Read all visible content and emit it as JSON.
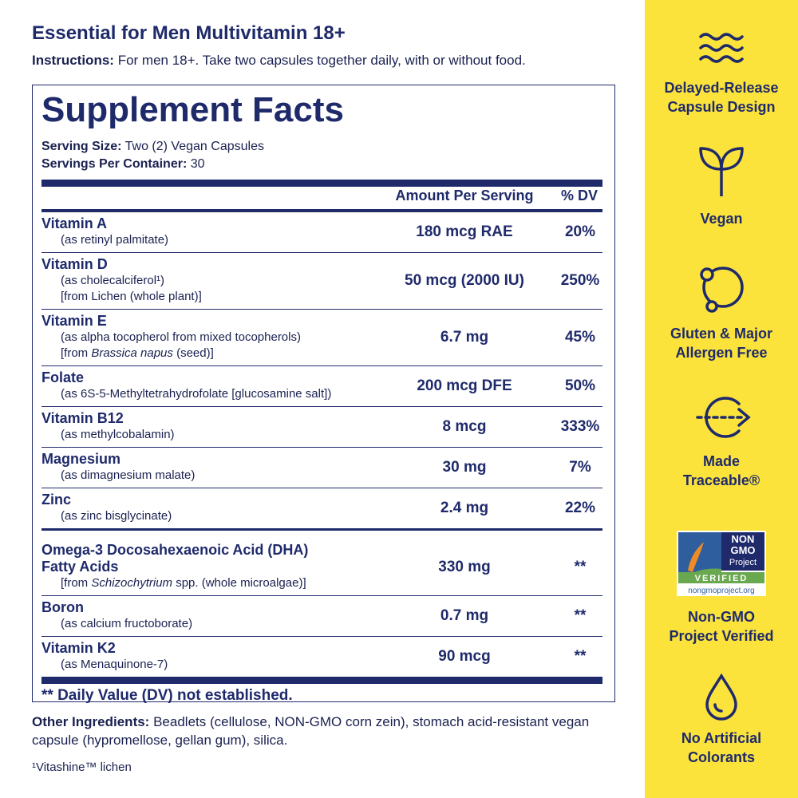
{
  "header": {
    "title": "Essential for Men Multivitamin 18+",
    "instructions": {
      "label": "Instructions:",
      "text": "For men 18+. Take two capsules together daily, with or without food."
    }
  },
  "facts": {
    "title": "Supplement Facts",
    "serving_size": {
      "label": "Serving Size:",
      "text": "Two (2) Vegan Capsules"
    },
    "servings_per_container": {
      "label": "Servings Per Container:",
      "text": "30"
    },
    "columns": {
      "amount": "Amount Per Serving",
      "dv": "% DV"
    },
    "groups": [
      {
        "rows": [
          {
            "name": [
              "Vitamin A"
            ],
            "details": [
              [
                "(as retinyl palmitate)"
              ]
            ],
            "amount": "180 mcg RAE",
            "dv": "20%"
          },
          {
            "name": [
              "Vitamin D"
            ],
            "details": [
              [
                "(as cholecalciferol¹)"
              ],
              [
                "[from Lichen (whole plant)]"
              ]
            ],
            "amount": "50 mcg (2000 IU)",
            "dv": "250%"
          },
          {
            "name": [
              "Vitamin E"
            ],
            "details": [
              [
                "(as alpha tocopherol from mixed tocopherols)"
              ],
              [
                "[from ",
                "Brassica napus",
                " (seed)]"
              ]
            ],
            "amount": "6.7 mg",
            "dv": "45%"
          },
          {
            "name": [
              "Folate"
            ],
            "details": [
              [
                "(as 6S-5-Methyltetrahydrofolate [glucosamine salt])"
              ]
            ],
            "amount": "200 mcg DFE",
            "dv": "50%"
          },
          {
            "name": [
              "Vitamin B12"
            ],
            "details": [
              [
                "(as methylcobalamin)"
              ]
            ],
            "amount": "8 mcg",
            "dv": "333%"
          },
          {
            "name": [
              "Magnesium"
            ],
            "details": [
              [
                "(as dimagnesium malate)"
              ]
            ],
            "amount": "30 mg",
            "dv": "7%"
          },
          {
            "name": [
              "Zinc"
            ],
            "details": [
              [
                "(as zinc bisglycinate)"
              ]
            ],
            "amount": "2.4 mg",
            "dv": "22%"
          }
        ]
      },
      {
        "rows": [
          {
            "name": [
              "Omega-3 Docosahexaenoic Acid (DHA)",
              "Fatty Acids"
            ],
            "details": [
              [
                "[from ",
                "Schizochytrium",
                " spp. (whole microalgae)]"
              ]
            ],
            "amount": "330 mg",
            "dv": "**"
          },
          {
            "name": [
              "Boron"
            ],
            "details": [
              [
                "(as calcium fructoborate)"
              ]
            ],
            "amount": "0.7 mg",
            "dv": "**"
          },
          {
            "name": [
              "Vitamin K2"
            ],
            "details": [
              [
                "(as Menaquinone-7)"
              ]
            ],
            "amount": "90 mcg",
            "dv": "**"
          }
        ]
      }
    ],
    "footnote": "** Daily Value (DV) not established."
  },
  "other_ingredients": {
    "label": "Other Ingredients:",
    "text": "Beadlets (cellulose, NON-GMO corn zein), stomach acid-resistant vegan capsule (hypromellose, gellan gum), silica."
  },
  "footnote": "¹Vitashine™ lichen",
  "features": [
    {
      "label": [
        "Delayed-Release",
        "Capsule Design"
      ]
    },
    {
      "label": [
        "Vegan"
      ]
    },
    {
      "label": [
        "Gluten & Major",
        "Allergen Free"
      ]
    },
    {
      "label": [
        "Made",
        "Traceable®"
      ]
    },
    {
      "label": [
        "Non-GMO",
        "Project Verified"
      ],
      "badge": [
        "NON",
        "GMO",
        "Project",
        "VERIFIED",
        "nongmoproject.org"
      ]
    },
    {
      "label": [
        "No Artificial",
        "Colorants"
      ]
    }
  ]
}
